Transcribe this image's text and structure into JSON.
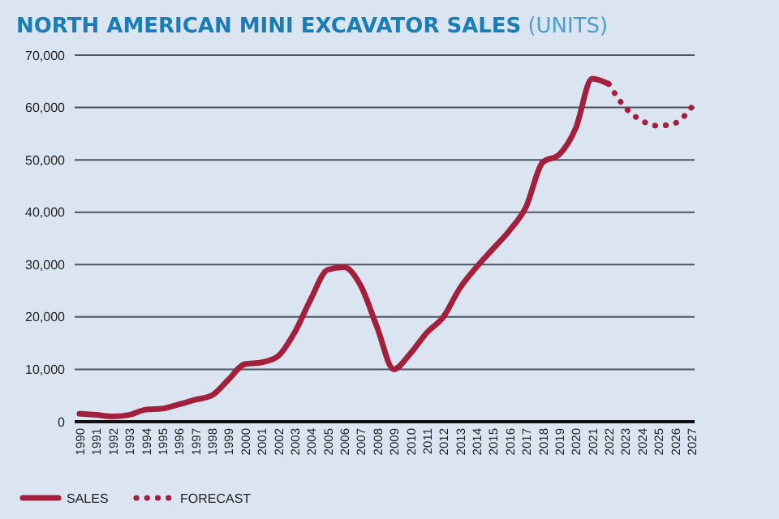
{
  "chart_data": {
    "type": "line",
    "title": "NORTH AMERICAN MINI EXCAVATOR SALES",
    "subtitle": "(UNITS)",
    "categories": [
      "1990",
      "1991",
      "1992",
      "1993",
      "1994",
      "1995",
      "1996",
      "1997",
      "1998",
      "1999",
      "2000",
      "2001",
      "2002",
      "2003",
      "2004",
      "2005",
      "2006",
      "2007",
      "2008",
      "2009",
      "2010",
      "2011",
      "2012",
      "2013",
      "2014",
      "2015",
      "2016",
      "2017",
      "2018",
      "2019",
      "2020",
      "2021",
      "2022",
      "2023",
      "2024",
      "2025",
      "2026",
      "2027"
    ],
    "series": [
      {
        "name": "SALES",
        "color": "#a3203d",
        "line_style": "solid",
        "values": [
          1500,
          1300,
          1000,
          1300,
          2300,
          2500,
          3300,
          4200,
          5000,
          8000,
          11000,
          11300,
          12500,
          17000,
          23500,
          29000,
          29500,
          26000,
          18000,
          10000,
          13000,
          17000,
          20000,
          25500,
          29500,
          33000,
          36500,
          41000,
          49500,
          51000,
          56000,
          65500,
          64500,
          null,
          null,
          null,
          null,
          null
        ]
      },
      {
        "name": "FORECAST",
        "color": "#a3203d",
        "line_style": "dotted",
        "values": [
          null,
          null,
          null,
          null,
          null,
          null,
          null,
          null,
          null,
          null,
          null,
          null,
          null,
          null,
          null,
          null,
          null,
          null,
          null,
          null,
          null,
          null,
          null,
          null,
          null,
          null,
          null,
          null,
          null,
          null,
          null,
          null,
          64500,
          60000,
          57500,
          56500,
          57000,
          60000
        ]
      }
    ],
    "ylim": [
      0,
      70000
    ],
    "yticks": [
      {
        "value": 0,
        "label": "0"
      },
      {
        "value": 10000,
        "label": "10,000"
      },
      {
        "value": 20000,
        "label": "20,000"
      },
      {
        "value": 30000,
        "label": "30,000"
      },
      {
        "value": 40000,
        "label": "40,000"
      },
      {
        "value": 50000,
        "label": "50,000"
      },
      {
        "value": 60000,
        "label": "60,000"
      },
      {
        "value": 70000,
        "label": "70,000"
      }
    ],
    "grid": "y",
    "legend": "bottom left",
    "marker": "none"
  }
}
